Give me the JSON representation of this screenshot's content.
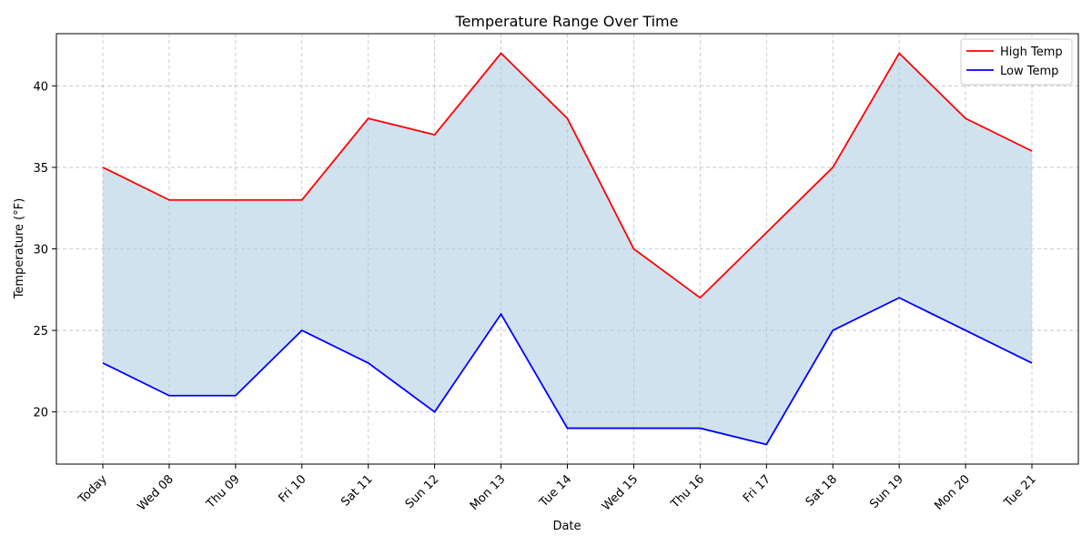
{
  "chart_data": {
    "type": "line",
    "title": "Temperature Range Over Time",
    "xlabel": "Date",
    "ylabel": "Temperature (°F)",
    "categories": [
      "Today",
      "Wed 08",
      "Thu 09",
      "Fri 10",
      "Sat 11",
      "Sun 12",
      "Mon 13",
      "Tue 14",
      "Wed 15",
      "Thu 16",
      "Fri 17",
      "Sat 18",
      "Sun 19",
      "Mon 20",
      "Tue 21"
    ],
    "series": [
      {
        "name": "High Temp",
        "color": "#ff0000",
        "values": [
          35,
          33,
          33,
          33,
          38,
          37,
          42,
          38,
          30,
          27,
          31,
          35,
          42,
          38,
          36
        ]
      },
      {
        "name": "Low Temp",
        "color": "#0000ff",
        "values": [
          23,
          21,
          21,
          25,
          23,
          20,
          26,
          19,
          19,
          19,
          18,
          25,
          27,
          25,
          23
        ]
      }
    ],
    "fill_color": "#a9c9e0",
    "ylim": [
      16.8,
      43.2
    ],
    "yticks": [
      20,
      25,
      30,
      35,
      40
    ],
    "grid": true,
    "legend_position": "top-right"
  }
}
